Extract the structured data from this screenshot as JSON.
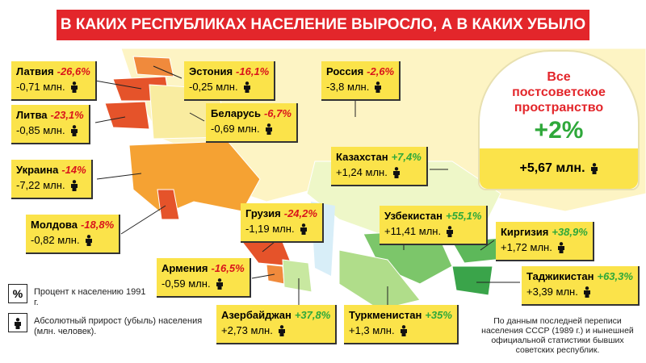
{
  "title": "В КАКИХ РЕСПУБЛИКАХ НАСЕЛЕНИЕ ВЫРОСЛО, А В КАКИХ УБЫЛО",
  "countries": [
    {
      "name": "Латвия",
      "percent": "-26,6%",
      "absolute": "-0,71 млн."
    },
    {
      "name": "Эстония",
      "percent": "-16,1%",
      "absolute": "-0,25 млн."
    },
    {
      "name": "Россия",
      "percent": "-2,6%",
      "absolute": "-3,8 млн."
    },
    {
      "name": "Литва",
      "percent": "-23,1%",
      "absolute": "-0,85 млн."
    },
    {
      "name": "Беларусь",
      "percent": "-6,7%",
      "absolute": "-0,69 млн."
    },
    {
      "name": "Казахстан",
      "percent": "+7,4%",
      "absolute": "+1,24 млн."
    },
    {
      "name": "Украина",
      "percent": "-14%",
      "absolute": "-7,22 млн."
    },
    {
      "name": "Грузия",
      "percent": "-24,2%",
      "absolute": "-1,19 млн."
    },
    {
      "name": "Узбекистан",
      "percent": "+55,1%",
      "absolute": "+11,41 млн."
    },
    {
      "name": "Киргизия",
      "percent": "+38,9%",
      "absolute": "+1,72 млн."
    },
    {
      "name": "Молдова",
      "percent": "-18,8%",
      "absolute": "-0,82 млн."
    },
    {
      "name": "Армения",
      "percent": "-16,5%",
      "absolute": "-0,59 млн."
    },
    {
      "name": "Таджикистан",
      "percent": "+63,3%",
      "absolute": "+3,39 млн."
    },
    {
      "name": "Азербайджан",
      "percent": "+37,8%",
      "absolute": "+2,73 млн."
    },
    {
      "name": "Туркменистан",
      "percent": "+35%",
      "absolute": "+1,3 млн."
    }
  ],
  "summary": {
    "title": "Все постсоветское пространство",
    "percent": "+2%",
    "absolute": "+5,67 млн."
  },
  "legend": {
    "percent_symbol": "%",
    "percent_text": "Процент к населению 1991 г.",
    "absolute_text": "Абсолютный прирост (убыль) населения (млн. человек)."
  },
  "footnote": "По данным последней переписи населения СССР (1989 г.) и нынешней официальной статистики бывших советских республик."
}
